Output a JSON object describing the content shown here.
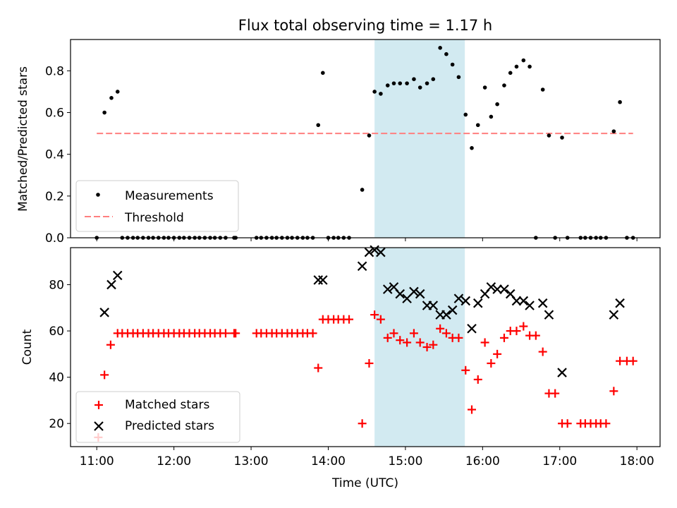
{
  "title": "Flux total observing time = 1.17 h",
  "colors": {
    "measurement": "#000000",
    "threshold": "#ff7f7f",
    "matched": "#ff0000",
    "predicted": "#000000",
    "highlight": "#add8e6"
  },
  "chart_data": [
    {
      "type": "scatter",
      "ylabel": "Matched/Predicted stars",
      "ylim": [
        0,
        0.95
      ],
      "yticks": [
        0.0,
        0.2,
        0.4,
        0.6,
        0.8
      ],
      "ytick_labels": [
        "0.0",
        "0.2",
        "0.4",
        "0.6",
        "0.8"
      ],
      "xlim": [
        10.66,
        18.3
      ],
      "highlight_span": [
        14.6,
        15.77
      ],
      "legend": {
        "placement": "lower-left",
        "entries": [
          "Measurements",
          "Threshold"
        ]
      },
      "threshold": {
        "name": "Threshold",
        "value": 0.5,
        "x_range": [
          11.0,
          17.95
        ]
      },
      "series": [
        {
          "name": "Measurements",
          "x": [
            11.0,
            11.1,
            11.19,
            11.27,
            11.33,
            11.4,
            11.47,
            11.53,
            11.6,
            11.67,
            11.73,
            11.8,
            11.87,
            11.93,
            12.0,
            12.07,
            12.13,
            12.2,
            12.27,
            12.33,
            12.4,
            12.47,
            12.53,
            12.6,
            12.67,
            12.78,
            12.8,
            13.07,
            13.13,
            13.2,
            13.27,
            13.33,
            13.4,
            13.47,
            13.53,
            13.6,
            13.67,
            13.73,
            13.8,
            13.87,
            13.93,
            14.0,
            14.07,
            14.13,
            14.2,
            14.27,
            14.44,
            14.53,
            14.6,
            14.68,
            14.77,
            14.85,
            14.93,
            15.02,
            15.11,
            15.19,
            15.28,
            15.36,
            15.45,
            15.53,
            15.61,
            15.69,
            15.78,
            15.86,
            15.94,
            16.03,
            16.11,
            16.19,
            16.28,
            16.36,
            16.44,
            16.53,
            16.61,
            16.69,
            16.78,
            16.86,
            16.94,
            17.03,
            17.1,
            17.27,
            17.33,
            17.4,
            17.47,
            17.53,
            17.6,
            17.7,
            17.78,
            17.87,
            17.95
          ],
          "y": [
            0.0,
            0.6,
            0.67,
            0.7,
            0.0,
            0.0,
            0.0,
            0.0,
            0.0,
            0.0,
            0.0,
            0.0,
            0.0,
            0.0,
            0.0,
            0.0,
            0.0,
            0.0,
            0.0,
            0.0,
            0.0,
            0.0,
            0.0,
            0.0,
            0.0,
            0.0,
            0.0,
            0.0,
            0.0,
            0.0,
            0.0,
            0.0,
            0.0,
            0.0,
            0.0,
            0.0,
            0.0,
            0.0,
            0.0,
            0.54,
            0.79,
            0.0,
            0.0,
            0.0,
            0.0,
            0.0,
            0.23,
            0.49,
            0.7,
            0.69,
            0.73,
            0.74,
            0.74,
            0.74,
            0.76,
            0.72,
            0.74,
            0.76,
            0.91,
            0.88,
            0.83,
            0.77,
            0.59,
            0.43,
            0.54,
            0.72,
            0.58,
            0.64,
            0.73,
            0.79,
            0.82,
            0.85,
            0.82,
            0.0,
            0.71,
            0.49,
            0.0,
            0.48,
            0.0,
            0.0,
            0.0,
            0.0,
            0.0,
            0.0,
            0.0,
            0.51,
            0.65,
            0.0,
            0.0
          ]
        }
      ]
    },
    {
      "type": "scatter",
      "ylabel": "Count",
      "xlabel": "Time (UTC)",
      "ylim": [
        10,
        96
      ],
      "yticks": [
        20,
        40,
        60,
        80
      ],
      "ytick_labels": [
        "20",
        "40",
        "60",
        "80"
      ],
      "xlim": [
        10.66,
        18.3
      ],
      "xticks": [
        11,
        12,
        13,
        14,
        15,
        16,
        17,
        18
      ],
      "xtick_labels": [
        "11:00",
        "12:00",
        "13:00",
        "14:00",
        "15:00",
        "16:00",
        "17:00",
        "18:00"
      ],
      "highlight_span": [
        14.6,
        15.77
      ],
      "legend": {
        "placement": "lower-left",
        "entries": [
          "Matched stars",
          "Predicted stars"
        ]
      },
      "series": [
        {
          "name": "Matched stars",
          "x": [
            11.02,
            11.1,
            11.18,
            11.27,
            11.33,
            11.4,
            11.47,
            11.53,
            11.6,
            11.67,
            11.73,
            11.8,
            11.87,
            11.93,
            12.0,
            12.07,
            12.13,
            12.2,
            12.27,
            12.33,
            12.4,
            12.47,
            12.53,
            12.6,
            12.67,
            12.78,
            12.8,
            13.07,
            13.13,
            13.2,
            13.27,
            13.33,
            13.4,
            13.47,
            13.53,
            13.6,
            13.67,
            13.73,
            13.8,
            13.87,
            13.93,
            14.0,
            14.07,
            14.13,
            14.2,
            14.27,
            14.44,
            14.53,
            14.6,
            14.68,
            14.77,
            14.85,
            14.93,
            15.02,
            15.11,
            15.19,
            15.28,
            15.36,
            15.45,
            15.53,
            15.61,
            15.69,
            15.78,
            15.86,
            15.94,
            16.03,
            16.11,
            16.19,
            16.28,
            16.36,
            16.44,
            16.53,
            16.61,
            16.69,
            16.78,
            16.86,
            16.94,
            17.03,
            17.1,
            17.27,
            17.33,
            17.4,
            17.47,
            17.53,
            17.6,
            17.7,
            17.78,
            17.87,
            17.95
          ],
          "y": [
            14,
            41,
            54,
            59,
            59,
            59,
            59,
            59,
            59,
            59,
            59,
            59,
            59,
            59,
            59,
            59,
            59,
            59,
            59,
            59,
            59,
            59,
            59,
            59,
            59,
            59,
            59,
            59,
            59,
            59,
            59,
            59,
            59,
            59,
            59,
            59,
            59,
            59,
            59,
            44,
            65,
            65,
            65,
            65,
            65,
            65,
            20,
            46,
            67,
            65,
            57,
            59,
            56,
            55,
            59,
            55,
            53,
            54,
            61,
            59,
            57,
            57,
            43,
            26,
            39,
            55,
            46,
            50,
            57,
            60,
            60,
            62,
            58,
            58,
            51,
            33,
            33,
            20,
            20,
            20,
            20,
            20,
            20,
            20,
            20,
            34,
            47,
            47,
            47
          ]
        },
        {
          "name": "Predicted stars",
          "x": [
            11.1,
            11.19,
            11.27,
            13.87,
            13.93,
            14.44,
            14.53,
            14.6,
            14.68,
            14.77,
            14.85,
            14.93,
            15.02,
            15.11,
            15.19,
            15.28,
            15.36,
            15.45,
            15.53,
            15.61,
            15.69,
            15.78,
            15.86,
            15.94,
            16.03,
            16.11,
            16.19,
            16.28,
            16.36,
            16.44,
            16.53,
            16.61,
            16.78,
            16.86,
            17.03,
            17.7,
            17.78
          ],
          "y": [
            68,
            80,
            84,
            82,
            82,
            88,
            94,
            95,
            94,
            78,
            79,
            76,
            74,
            77,
            76,
            71,
            71,
            67,
            67,
            69,
            74,
            73,
            61,
            72,
            76,
            79,
            78,
            78,
            76,
            73,
            73,
            71,
            72,
            67,
            42,
            67,
            72
          ]
        }
      ]
    }
  ]
}
